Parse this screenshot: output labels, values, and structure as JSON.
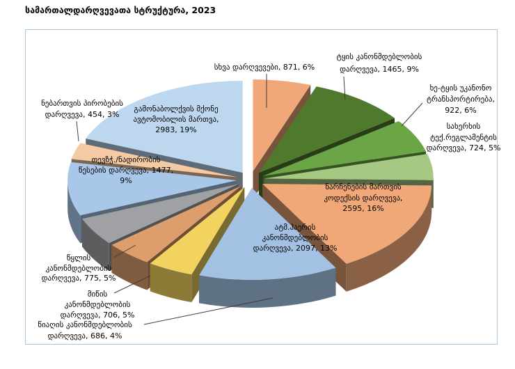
{
  "page": {
    "background": "#FFFFFF"
  },
  "chart_data": {
    "type": "pie",
    "style": "3d-exploded",
    "title": "სამართალდარღვევათა სტრუქტურა, 2023",
    "legend": "none",
    "start_angle_deg": 0,
    "direction": "clockwise",
    "frame_color": "#A5C6DE",
    "label_color": "#000000",
    "leader_line_color": "#3F3F3F",
    "slices": [
      {
        "label": "სხვა დარღვევები",
        "value": 871,
        "pct": 6,
        "color": "#F0A878",
        "label_lines": [
          "სხვა დარღვევები, 871, 6%"
        ]
      },
      {
        "label": "ტყის კანონმდებლობის დარღვევა",
        "value": 1465,
        "pct": 9,
        "color": "#4F7A2D",
        "label_lines": [
          "ტყის კანონმდებლობის",
          "დარღვევა, 1465, 9%"
        ]
      },
      {
        "label": "ხე-ტყის უკანონო ტრანსპორტირება",
        "value": 922,
        "pct": 6,
        "color": "#6BA546",
        "label_lines": [
          "ხე-ტყის უკანონო",
          "ტრანსპორტირება,",
          "922, 6%"
        ]
      },
      {
        "label": "სახერხის ტექ.რეგლამენტის დარღვევა",
        "value": 724,
        "pct": 5,
        "color": "#A5C983",
        "label_lines": [
          "სახერხის",
          "ტექ.რეგლამენტის",
          "დარღვევა, 724, 5%"
        ]
      },
      {
        "label": "ნარჩენების მართვის კოდექსის დარღვევა",
        "value": 2595,
        "pct": 16,
        "color": "#F0A878",
        "label_lines": [
          "ნარჩენების მართვის",
          "კოდექსის დარღვევა,",
          "2595, 16%"
        ]
      },
      {
        "label": "ატმ.ჰაერის კანონმდებლობის დარღვევა",
        "value": 2097,
        "pct": 13,
        "color": "#A3C2E3",
        "label_lines": [
          "ატმ.ჰაერის",
          "კანონმდებლობის",
          "დარღვევა, 2097, 13%"
        ]
      },
      {
        "label": "წიაღის კანონმდებლობის დარღვევა",
        "value": 686,
        "pct": 4,
        "color": "#F2D35F",
        "label_lines": [
          "წიაღის კანონმდებლობის",
          "დარღვევა, 686, 4%"
        ]
      },
      {
        "label": "მიწის კანონმდებლობის დარღვევა",
        "value": 706,
        "pct": 5,
        "color": "#DB9E6C",
        "label_lines": [
          "მიწის",
          "კანონმდებლობის",
          "დარღვევა, 706, 5%"
        ]
      },
      {
        "label": "წყლის კანონმდებლობის დარღვევა",
        "value": 775,
        "pct": 5,
        "color": "#A0A1A4",
        "label_lines": [
          "წყლის",
          "კანონმდებლობის",
          "დარღვევა, 775, 5%"
        ]
      },
      {
        "label": "თევზჭ./ნადირობის წესების დარღვევა",
        "value": 1477,
        "pct": 9,
        "color": "#A9C7E8",
        "label_lines": [
          "თევზჭ./ნადირობის",
          "წესების დარღვევა, 1477,",
          "9%"
        ]
      },
      {
        "label": "ნებართვის პირობების დარღვევა",
        "value": 454,
        "pct": 3,
        "color": "#F5CBA6",
        "label_lines": [
          "ნებართვის პირობების",
          "დარღვევა, 454, 3%"
        ]
      },
      {
        "label": "გამონაბოლქვის მქონე ავტომობილის მართვა",
        "value": 2983,
        "pct": 19,
        "color": "#BDD7EE",
        "label_lines": [
          "გამონაბოლქვის მქონე",
          "ავტომობილის მართვა,",
          "2983, 19%"
        ]
      }
    ]
  }
}
